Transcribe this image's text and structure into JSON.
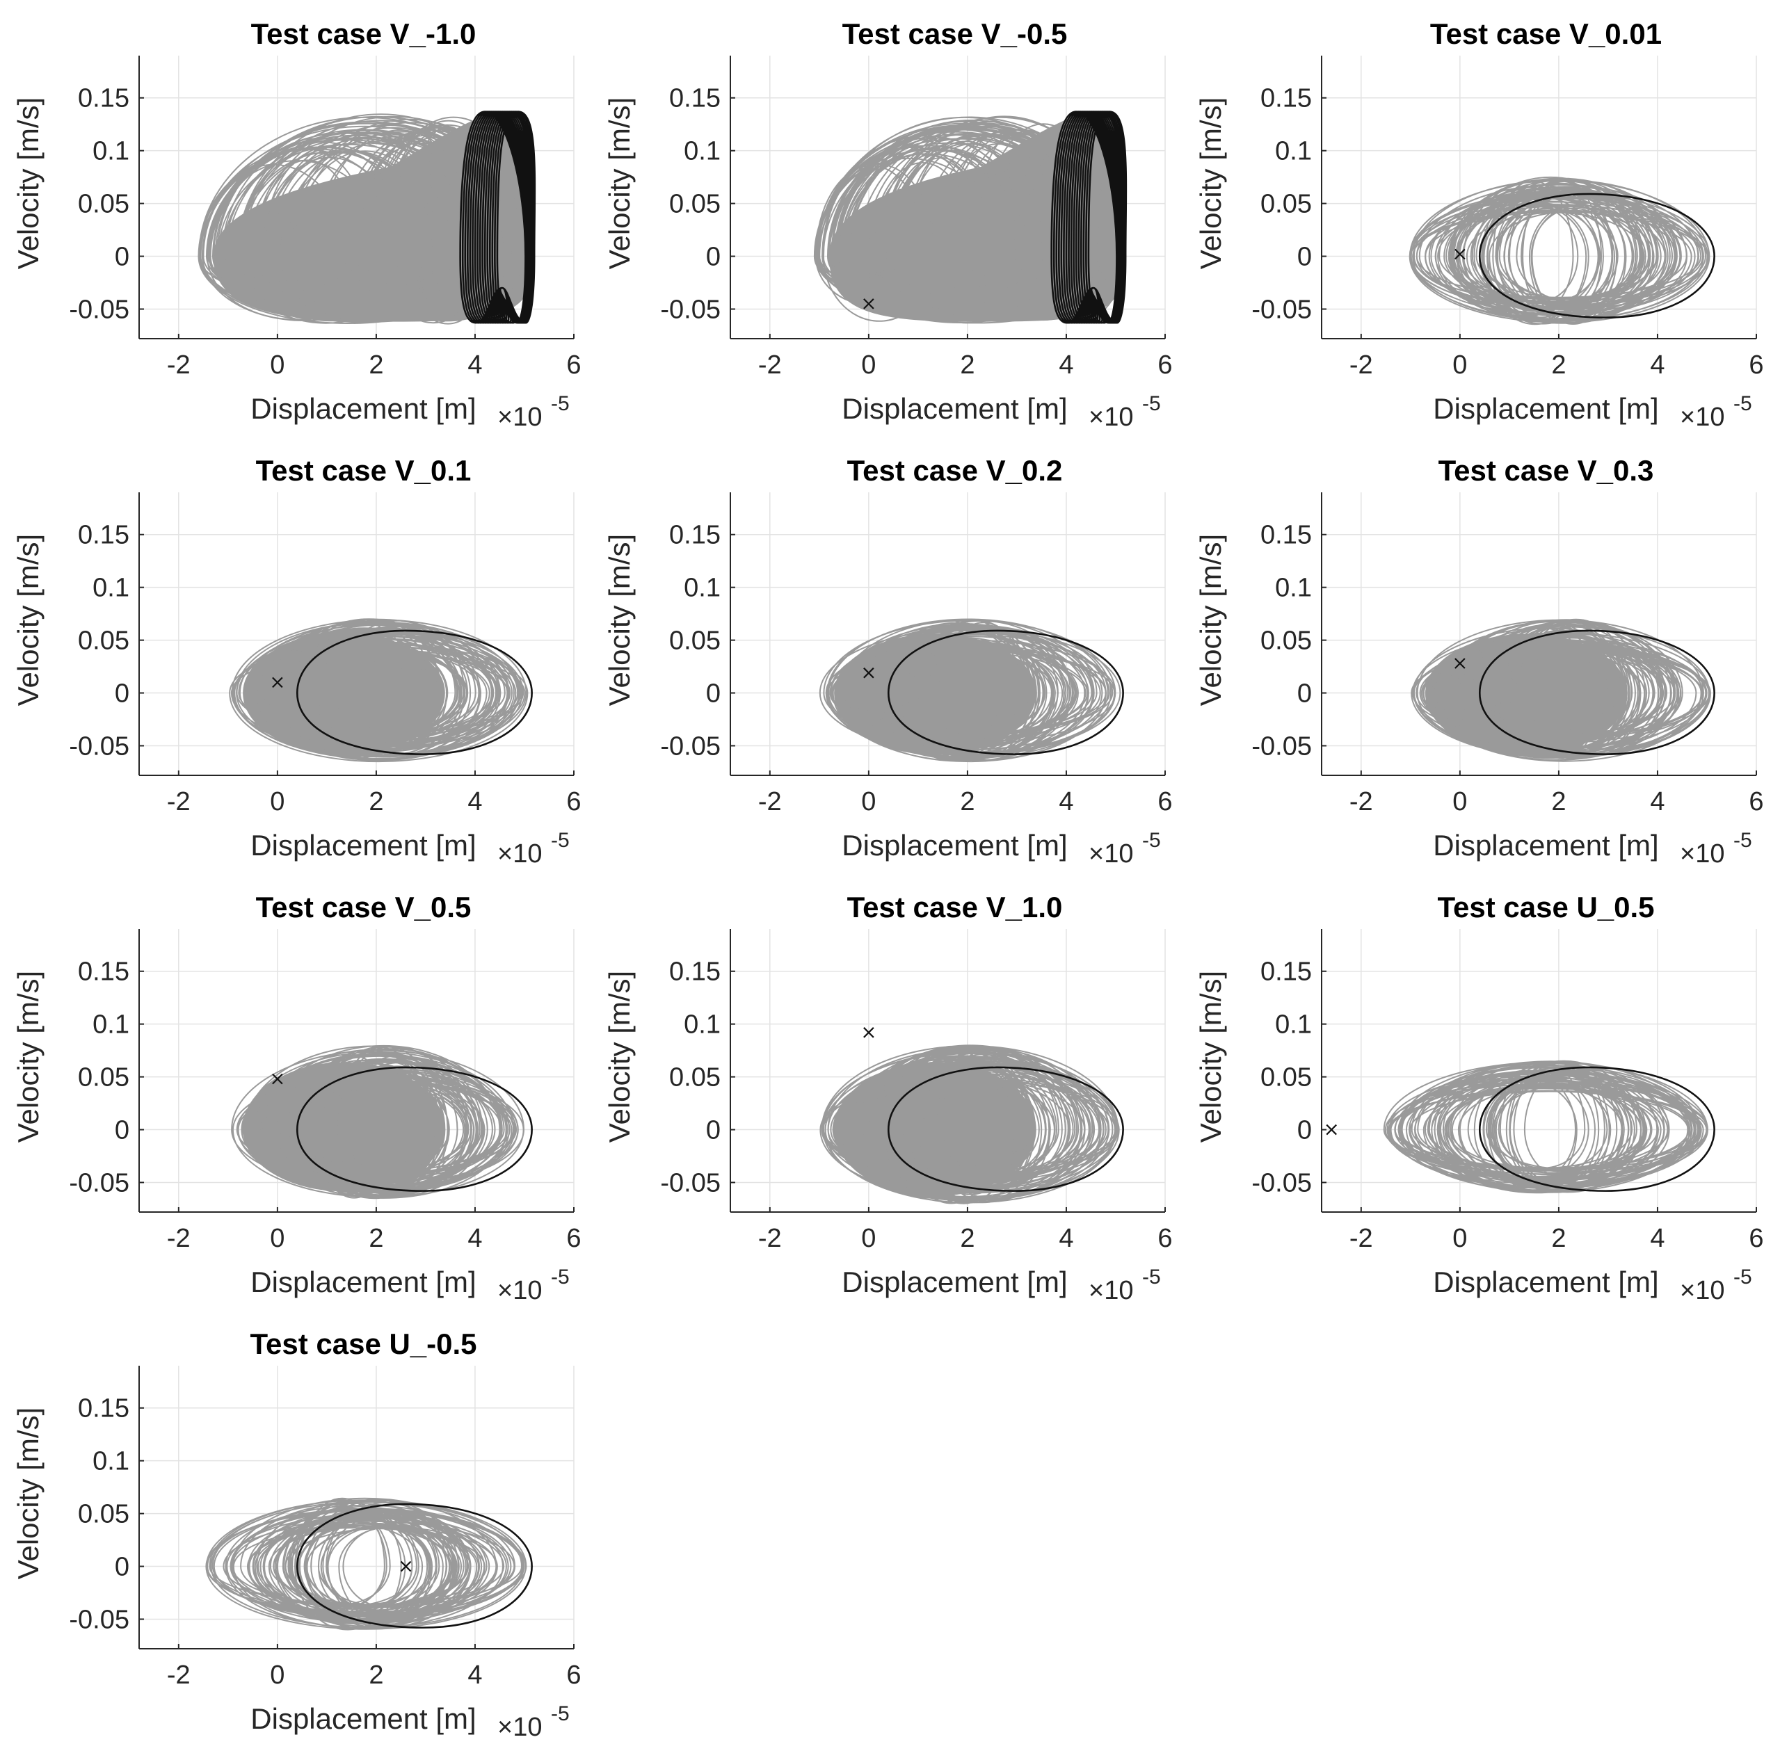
{
  "chart_data": {
    "type": "scatter",
    "layout_grid": {
      "rows": 4,
      "cols": 3
    },
    "shared_axes": {
      "xlabel": "Displacement [m]",
      "x_multiplier_base": "×10",
      "x_multiplier_exp": "-5",
      "ylabel": "Velocity [m/s]",
      "xlim": [
        -2.8,
        6
      ],
      "ylim": [
        -0.078,
        0.19
      ],
      "xticks": [
        -2,
        0,
        2,
        4,
        6
      ],
      "xtick_labels": [
        "-2",
        "0",
        "2",
        "4",
        "6"
      ],
      "yticks": [
        -0.05,
        0,
        0.05,
        0.1,
        0.15
      ],
      "ytick_labels": [
        "-0.05",
        "0",
        "0.05",
        "0.1",
        "0.15"
      ],
      "grid": true,
      "gray_color": "#9a9a9a",
      "black_color": "#111111"
    },
    "panels": [
      {
        "title": "Test case V_-1.0",
        "attractor": "chaotic",
        "marker": null,
        "cloud": {
          "xmin": -1.6,
          "xmax": 5.2,
          "vmin": -0.064,
          "vmax": 0.137
        }
      },
      {
        "title": "Test case V_-0.5",
        "attractor": "chaotic",
        "marker": {
          "x": 0.0,
          "y": -0.045
        },
        "cloud": {
          "xmin": -1.1,
          "xmax": 5.2,
          "vmin": -0.064,
          "vmax": 0.137
        }
      },
      {
        "title": "Test case V_0.01",
        "attractor": "ellipse",
        "marker": {
          "x": 0.0,
          "y": 0.002
        },
        "cloud": {
          "xmin": -1.1,
          "xmax": 5.1,
          "vmin": -0.065,
          "vmax": 0.075
        }
      },
      {
        "title": "Test case V_0.1",
        "attractor": "ellipse",
        "marker": {
          "x": 0.0,
          "y": 0.01
        },
        "cloud": {
          "xmin": -1.0,
          "xmax": 5.1,
          "vmin": -0.065,
          "vmax": 0.07
        }
      },
      {
        "title": "Test case V_0.2",
        "attractor": "ellipse",
        "marker": {
          "x": 0.0,
          "y": 0.019
        },
        "cloud": {
          "xmin": -1.0,
          "xmax": 5.1,
          "vmin": -0.065,
          "vmax": 0.07
        }
      },
      {
        "title": "Test case V_0.3",
        "attractor": "ellipse",
        "marker": {
          "x": 0.0,
          "y": 0.028
        },
        "cloud": {
          "xmin": -1.0,
          "xmax": 5.1,
          "vmin": -0.065,
          "vmax": 0.07
        }
      },
      {
        "title": "Test case V_0.5",
        "attractor": "ellipse",
        "marker": {
          "x": 0.0,
          "y": 0.048
        },
        "cloud": {
          "xmin": -1.0,
          "xmax": 5.1,
          "vmin": -0.065,
          "vmax": 0.08
        }
      },
      {
        "title": "Test case V_1.0",
        "attractor": "ellipse",
        "marker": {
          "x": 0.0,
          "y": 0.092
        },
        "cloud": {
          "xmin": -1.0,
          "xmax": 5.1,
          "vmin": -0.07,
          "vmax": 0.08
        }
      },
      {
        "title": "Test case U_0.5",
        "attractor": "ellipse",
        "marker": {
          "x": -2.6,
          "y": 0.0
        },
        "cloud": {
          "xmin": -1.6,
          "xmax": 5.1,
          "vmin": -0.06,
          "vmax": 0.065
        }
      },
      {
        "title": "Test case U_-0.5",
        "attractor": "ellipse",
        "marker": {
          "x": 2.6,
          "y": 0.0
        },
        "cloud": {
          "xmin": -1.5,
          "xmax": 5.1,
          "vmin": -0.06,
          "vmax": 0.065
        }
      }
    ],
    "ellipse_orbit": {
      "x_left": 0.4,
      "x_right": 5.15,
      "x_peak": 2.6,
      "v_peak": 0.059,
      "x_trough": 2.95,
      "v_trough": -0.058
    },
    "chaotic_orbit": {
      "x_left": 3.7,
      "x_right": 5.2,
      "v_top": 0.137,
      "v_bottom": -0.063
    }
  }
}
